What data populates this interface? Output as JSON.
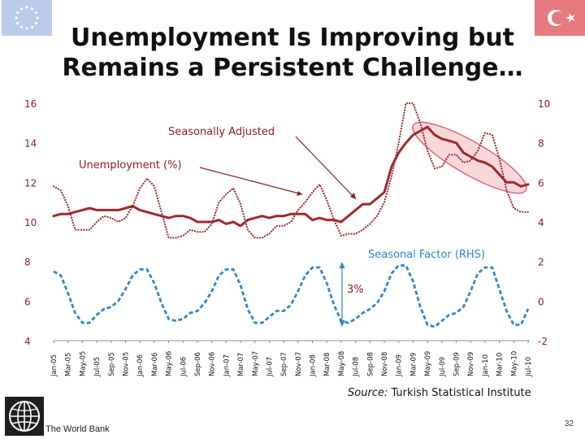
{
  "slide": {
    "title_line1": "Unemployment Is Improving but",
    "title_line2": "Remains a Persistent Challenge…",
    "source_label": "Source:",
    "source_text": " Turkish Statistical Institute",
    "org_name": "The World Bank",
    "page_number": "32"
  },
  "chart_data": {
    "type": "line",
    "title": "",
    "x": [
      "Jan-05",
      "Feb-05",
      "Mar-05",
      "Apr-05",
      "May-05",
      "Jun-05",
      "Jul-05",
      "Aug-05",
      "Sep-05",
      "Oct-05",
      "Nov-05",
      "Dec-05",
      "Jan-06",
      "Feb-06",
      "Mar-06",
      "Apr-06",
      "May-06",
      "Jun-06",
      "Jul-06",
      "Aug-06",
      "Sep-06",
      "Oct-06",
      "Nov-06",
      "Dec-06",
      "Jan-07",
      "Feb-07",
      "Mar-07",
      "Apr-07",
      "May-07",
      "Jun-07",
      "Jul-07",
      "Aug-07",
      "Sep-07",
      "Oct-07",
      "Nov-07",
      "Dec-07",
      "Jan-08",
      "Feb-08",
      "Mar-08",
      "Apr-08",
      "May-08",
      "Jun-08",
      "Jul-08",
      "Aug-08",
      "Sep-08",
      "Oct-08",
      "Nov-08",
      "Dec-08",
      "Jan-09",
      "Feb-09",
      "Mar-09",
      "Apr-09",
      "May-09",
      "Jun-09",
      "Jul-09",
      "Aug-09",
      "Sep-09",
      "Oct-09",
      "Nov-09",
      "Dec-09",
      "Jan-10",
      "Feb-10",
      "Mar-10",
      "Apr-10",
      "May-10",
      "Jun-10",
      "Jul-10"
    ],
    "x_tick_labels": [
      "Jan-05",
      "Mar-05",
      "May-05",
      "Jul-05",
      "Sep-05",
      "Nov-05",
      "Jan-06",
      "Mar-06",
      "May-06",
      "Jul-06",
      "Sep-06",
      "Nov-06",
      "Jan-07",
      "Mar-07",
      "May-07",
      "Jul-07",
      "Sep-07",
      "Nov-07",
      "Jan-08",
      "Mar-08",
      "May-08",
      "Jul-08",
      "Sep-08",
      "Nov-08",
      "Jan-09",
      "Mar-09",
      "May-09",
      "Jul-09",
      "Sep-09",
      "Nov-09",
      "Jan-10",
      "Mar-10",
      "May-10",
      "Jul-10"
    ],
    "y_left": {
      "min": 4,
      "max": 16,
      "ticks": [
        4,
        6,
        8,
        10,
        12,
        14,
        16
      ]
    },
    "y_right": {
      "min": -2,
      "max": 10,
      "ticks": [
        -2,
        0,
        2,
        4,
        6,
        8,
        10
      ]
    },
    "series": [
      {
        "name": "Unemployment (%)",
        "axis": "left",
        "style": "dotted",
        "color": "#a0292a",
        "values": [
          11.8,
          11.6,
          10.8,
          9.6,
          9.6,
          9.6,
          10.0,
          10.3,
          10.2,
          10.0,
          10.2,
          10.8,
          11.7,
          12.2,
          11.8,
          10.5,
          9.2,
          9.2,
          9.3,
          9.6,
          9.5,
          9.5,
          9.9,
          11.0,
          11.4,
          11.7,
          10.9,
          9.6,
          9.2,
          9.2,
          9.4,
          9.8,
          9.8,
          10.0,
          10.6,
          11.0,
          11.5,
          11.9,
          11.1,
          10.1,
          9.3,
          9.4,
          9.4,
          9.6,
          9.9,
          10.3,
          11.0,
          12.3,
          14.0,
          16.0,
          16.0,
          15.0,
          13.6,
          12.7,
          12.8,
          13.4,
          13.4,
          13.0,
          13.1,
          13.6,
          14.5,
          14.4,
          13.2,
          11.6,
          10.7,
          10.5,
          10.5
        ]
      },
      {
        "name": "Seasonally Adjusted",
        "axis": "left",
        "style": "solid",
        "color": "#a0292a",
        "values": [
          10.3,
          10.4,
          10.4,
          10.5,
          10.6,
          10.7,
          10.6,
          10.6,
          10.6,
          10.6,
          10.7,
          10.8,
          10.6,
          10.5,
          10.4,
          10.3,
          10.2,
          10.3,
          10.3,
          10.2,
          10.0,
          10.0,
          10.0,
          10.1,
          9.9,
          10.0,
          9.8,
          10.1,
          10.2,
          10.3,
          10.2,
          10.3,
          10.3,
          10.4,
          10.4,
          10.4,
          10.1,
          10.2,
          10.1,
          10.1,
          10.0,
          10.3,
          10.6,
          10.9,
          10.9,
          11.2,
          11.5,
          12.8,
          13.5,
          14.0,
          14.4,
          14.6,
          14.8,
          14.4,
          14.2,
          14.1,
          14.0,
          13.5,
          13.3,
          13.1,
          13.0,
          12.8,
          12.4,
          12.0,
          12.0,
          11.8,
          11.9
        ]
      },
      {
        "name": "Seasonal Factor (RHS)",
        "axis": "right",
        "style": "dashed",
        "color": "#2f87c8",
        "values": [
          1.5,
          1.3,
          0.4,
          -0.6,
          -1.1,
          -1.1,
          -0.7,
          -0.4,
          -0.3,
          0.0,
          0.6,
          1.3,
          1.6,
          1.6,
          0.9,
          -0.1,
          -0.9,
          -1.0,
          -0.9,
          -0.6,
          -0.5,
          -0.1,
          0.5,
          1.3,
          1.6,
          1.6,
          0.8,
          -0.4,
          -1.1,
          -1.1,
          -0.8,
          -0.5,
          -0.5,
          -0.2,
          0.5,
          1.3,
          1.7,
          1.7,
          0.9,
          -0.2,
          -1.0,
          -1.1,
          -0.9,
          -0.6,
          -0.4,
          -0.1,
          0.5,
          1.4,
          1.8,
          1.8,
          1.0,
          -0.3,
          -1.2,
          -1.3,
          -1.0,
          -0.7,
          -0.6,
          -0.3,
          0.5,
          1.4,
          1.7,
          1.7,
          0.6,
          -0.5,
          -1.2,
          -1.2,
          -0.4
        ]
      }
    ],
    "annotations": [
      "Seasonally Adjusted",
      "Unemployment (%)",
      "Seasonal Factor (RHS)",
      "3%"
    ],
    "grid": false,
    "legend": "none"
  },
  "colors": {
    "unemployment": "#a0292a",
    "seasonal_factor": "#2f87c8",
    "axis": "#888888",
    "highlight_fill": "#f2b8bd",
    "highlight_stroke": "#d9707a",
    "eu_blue": "#b9cbe8",
    "tr_red": "#e77a80"
  },
  "icons": {
    "eu_flag": "eu-flag-icon",
    "turkish_flag": "turkish-flag-icon",
    "world_bank_logo": "world-bank-globe-icon"
  }
}
